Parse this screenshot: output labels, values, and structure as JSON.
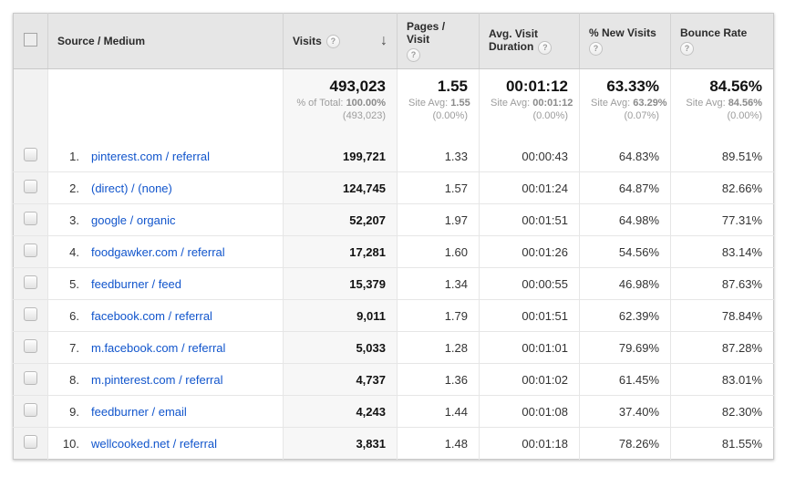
{
  "table": {
    "icons": {
      "help_glyph": "?",
      "sort_desc_glyph": "↓"
    },
    "colors": {
      "link_blue": "#1155cc",
      "header_bg": "#e6e6e6",
      "sorted_column_bg": "#f7f7f7"
    },
    "columns": {
      "source_medium": "Source / Medium",
      "visits": "Visits",
      "pages_per_visit": "Pages / Visit",
      "avg_visit_duration": "Avg. Visit Duration",
      "new_visits": "% New Visits",
      "bounce_rate": "Bounce Rate"
    },
    "summary": {
      "visits": {
        "value": "493,023",
        "sub_label": "% of Total:",
        "sub_value": "100.00%",
        "sub_paren": "(493,023)"
      },
      "pages_per_visit": {
        "value": "1.55",
        "sub_label": "Site Avg:",
        "sub_value": "1.55",
        "sub_paren": "(0.00%)"
      },
      "avg_visit_duration": {
        "value": "00:01:12",
        "sub_label": "Site Avg:",
        "sub_value": "00:01:12",
        "sub_paren": "(0.00%)"
      },
      "new_visits": {
        "value": "63.33%",
        "sub_label": "Site Avg:",
        "sub_value": "63.29%",
        "sub_paren": "(0.07%)"
      },
      "bounce_rate": {
        "value": "84.56%",
        "sub_label": "Site Avg:",
        "sub_value": "84.56%",
        "sub_paren": "(0.00%)"
      }
    },
    "rows": [
      {
        "index": "1.",
        "source": "pinterest.com / referral",
        "visits": "199,721",
        "pages_per_visit": "1.33",
        "avg_visit_duration": "00:00:43",
        "new_visits": "64.83%",
        "bounce_rate": "89.51%"
      },
      {
        "index": "2.",
        "source": "(direct) / (none)",
        "visits": "124,745",
        "pages_per_visit": "1.57",
        "avg_visit_duration": "00:01:24",
        "new_visits": "64.87%",
        "bounce_rate": "82.66%"
      },
      {
        "index": "3.",
        "source": "google / organic",
        "visits": "52,207",
        "pages_per_visit": "1.97",
        "avg_visit_duration": "00:01:51",
        "new_visits": "64.98%",
        "bounce_rate": "77.31%"
      },
      {
        "index": "4.",
        "source": "foodgawker.com / referral",
        "visits": "17,281",
        "pages_per_visit": "1.60",
        "avg_visit_duration": "00:01:26",
        "new_visits": "54.56%",
        "bounce_rate": "83.14%"
      },
      {
        "index": "5.",
        "source": "feedburner / feed",
        "visits": "15,379",
        "pages_per_visit": "1.34",
        "avg_visit_duration": "00:00:55",
        "new_visits": "46.98%",
        "bounce_rate": "87.63%"
      },
      {
        "index": "6.",
        "source": "facebook.com / referral",
        "visits": "9,011",
        "pages_per_visit": "1.79",
        "avg_visit_duration": "00:01:51",
        "new_visits": "62.39%",
        "bounce_rate": "78.84%"
      },
      {
        "index": "7.",
        "source": "m.facebook.com / referral",
        "visits": "5,033",
        "pages_per_visit": "1.28",
        "avg_visit_duration": "00:01:01",
        "new_visits": "79.69%",
        "bounce_rate": "87.28%"
      },
      {
        "index": "8.",
        "source": "m.pinterest.com / referral",
        "visits": "4,737",
        "pages_per_visit": "1.36",
        "avg_visit_duration": "00:01:02",
        "new_visits": "61.45%",
        "bounce_rate": "83.01%"
      },
      {
        "index": "9.",
        "source": "feedburner / email",
        "visits": "4,243",
        "pages_per_visit": "1.44",
        "avg_visit_duration": "00:01:08",
        "new_visits": "37.40%",
        "bounce_rate": "82.30%"
      },
      {
        "index": "10.",
        "source": "wellcooked.net / referral",
        "visits": "3,831",
        "pages_per_visit": "1.48",
        "avg_visit_duration": "00:01:18",
        "new_visits": "78.26%",
        "bounce_rate": "81.55%"
      }
    ]
  }
}
